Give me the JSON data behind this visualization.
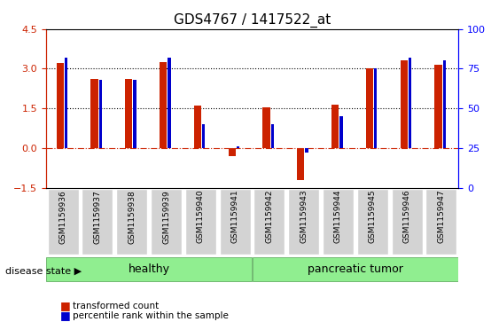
{
  "title": "GDS4767 / 1417522_at",
  "samples": [
    "GSM1159936",
    "GSM1159937",
    "GSM1159938",
    "GSM1159939",
    "GSM1159940",
    "GSM1159941",
    "GSM1159942",
    "GSM1159943",
    "GSM1159944",
    "GSM1159945",
    "GSM1159946",
    "GSM1159947"
  ],
  "transformed_counts": [
    3.2,
    2.6,
    2.6,
    3.25,
    1.6,
    -0.3,
    1.55,
    -1.2,
    1.65,
    3.0,
    3.3,
    3.15
  ],
  "percentile_ranks": [
    82,
    68,
    68,
    82,
    40,
    26,
    40,
    22,
    45,
    75,
    82,
    80
  ],
  "groups": [
    "healthy",
    "healthy",
    "healthy",
    "healthy",
    "healthy",
    "healthy",
    "pancreatic tumor",
    "pancreatic tumor",
    "pancreatic tumor",
    "pancreatic tumor",
    "pancreatic tumor",
    "pancreatic tumor"
  ],
  "group_colors": {
    "healthy": "#90EE90",
    "pancreatic tumor": "#90EE90"
  },
  "bar_color_red": "#CC2200",
  "bar_color_blue": "#0000CC",
  "ylim_left": [
    -1.5,
    4.5
  ],
  "ylim_right": [
    0,
    100
  ],
  "yticks_left": [
    -1.5,
    0,
    1.5,
    3,
    4.5
  ],
  "yticks_right": [
    0,
    25,
    50,
    75,
    100
  ],
  "hlines": [
    0,
    1.5,
    3.0
  ],
  "bg_color": "#FFFFFF",
  "tick_label_area_color": "#D3D3D3",
  "healthy_color": "#90EE90",
  "tumor_color": "#90EE90"
}
